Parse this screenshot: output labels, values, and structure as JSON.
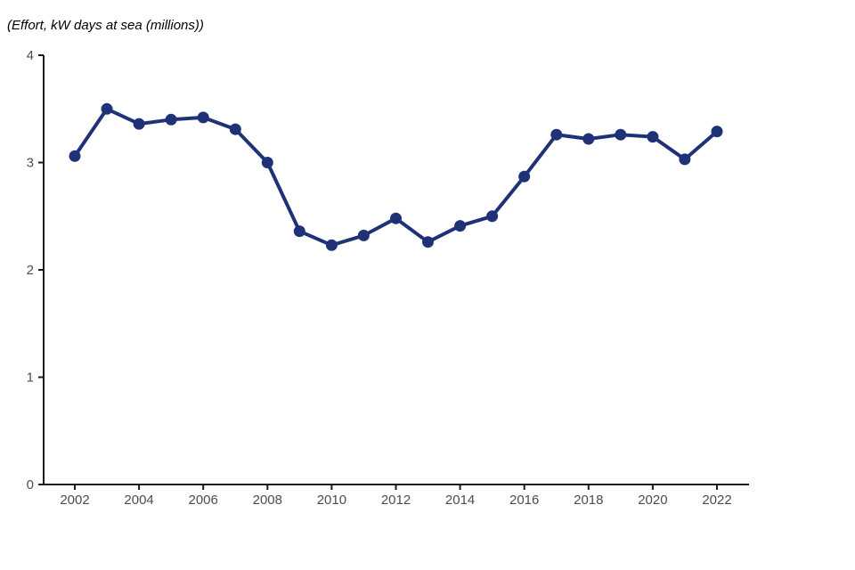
{
  "chart_data": {
    "type": "line",
    "title": "(Effort, kW days at sea (millions))",
    "x": [
      2002,
      2003,
      2004,
      2005,
      2006,
      2007,
      2008,
      2009,
      2010,
      2011,
      2012,
      2013,
      2014,
      2015,
      2016,
      2017,
      2018,
      2019,
      2020,
      2021,
      2022
    ],
    "values": [
      3.06,
      3.5,
      3.36,
      3.4,
      3.42,
      3.31,
      3.0,
      2.36,
      2.23,
      2.32,
      2.48,
      2.26,
      2.41,
      2.5,
      2.87,
      3.26,
      3.22,
      3.26,
      3.24,
      3.03,
      3.29
    ],
    "series_name": "Effort, kW days at sea (millions)",
    "xlabel": "",
    "ylabel": "",
    "ylim": [
      0,
      4
    ],
    "yticks": [
      0,
      1,
      2,
      3,
      4
    ],
    "xticks": [
      2002,
      2004,
      2006,
      2008,
      2010,
      2012,
      2014,
      2016,
      2018,
      2020,
      2022
    ],
    "grid": "off",
    "legend": "none",
    "marker": "circle",
    "line_color": "#1f3278",
    "marker_color": "#1f3278",
    "axis_color": "#1a1a1a",
    "tick_label_color": "#4d4d4d"
  }
}
